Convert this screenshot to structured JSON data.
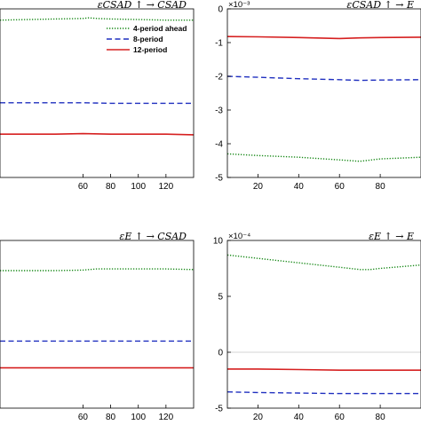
{
  "chart_data": [
    {
      "type": "line",
      "title": "εCSAD ↑ → CSAD",
      "xticks": [
        "60",
        "80",
        "100",
        "120"
      ],
      "xtick_values": [
        60,
        80,
        100,
        120
      ],
      "xlim": [
        0,
        140
      ],
      "ylim": [
        -1,
        2
      ],
      "yticks": [],
      "ylabel_exponent": "",
      "zero_line": false,
      "legend": {
        "position": "top-right",
        "entries": [
          "4-period ahead",
          "8-period",
          "12-period"
        ]
      },
      "series": [
        {
          "name": "4-period ahead",
          "color": "#1a8a1a",
          "style": "dotted",
          "x": [
            0,
            20,
            40,
            60,
            64,
            70,
            80,
            100,
            120,
            140
          ],
          "y": [
            1.8,
            1.81,
            1.82,
            1.83,
            1.84,
            1.83,
            1.82,
            1.81,
            1.8,
            1.8
          ]
        },
        {
          "name": "8-period",
          "color": "#1f2fbf",
          "style": "dashed",
          "x": [
            0,
            20,
            40,
            60,
            80,
            100,
            120,
            140
          ],
          "y": [
            0.33,
            0.33,
            0.33,
            0.33,
            0.32,
            0.32,
            0.32,
            0.32
          ]
        },
        {
          "name": "12-period",
          "color": "#d62020",
          "style": "solid",
          "x": [
            0,
            20,
            40,
            60,
            80,
            100,
            120,
            140
          ],
          "y": [
            -0.23,
            -0.23,
            -0.23,
            -0.22,
            -0.23,
            -0.23,
            -0.23,
            -0.24
          ]
        }
      ]
    },
    {
      "type": "line",
      "title": "εCSAD ↑ → E",
      "xticks": [
        "20",
        "40",
        "60",
        "80"
      ],
      "xtick_values": [
        20,
        40,
        60,
        80
      ],
      "xlim": [
        5,
        100
      ],
      "ylim": [
        -5,
        0
      ],
      "yticks": [
        "0",
        "-1",
        "-2",
        "-3",
        "-4",
        "-5"
      ],
      "ytick_values": [
        0,
        -1,
        -2,
        -3,
        -4,
        -5
      ],
      "ylabel_exponent": "×10⁻³",
      "zero_line": false,
      "legend": null,
      "series": [
        {
          "name": "",
          "color": "#d62020",
          "style": "solid",
          "x": [
            5,
            20,
            40,
            60,
            70,
            80,
            100
          ],
          "y": [
            -0.82,
            -0.83,
            -0.85,
            -0.88,
            -0.86,
            -0.85,
            -0.84
          ]
        },
        {
          "name": "",
          "color": "#1f2fbf",
          "style": "dashed",
          "x": [
            5,
            20,
            40,
            60,
            70,
            80,
            100
          ],
          "y": [
            -2.0,
            -2.03,
            -2.07,
            -2.1,
            -2.12,
            -2.11,
            -2.1
          ]
        },
        {
          "name": "",
          "color": "#1a8a1a",
          "style": "dotted",
          "x": [
            5,
            20,
            40,
            60,
            70,
            80,
            100
          ],
          "y": [
            -4.3,
            -4.35,
            -4.4,
            -4.48,
            -4.52,
            -4.45,
            -4.4
          ]
        }
      ]
    },
    {
      "type": "line",
      "title": "εE ↑ → CSAD",
      "xticks": [
        "60",
        "80",
        "100",
        "120"
      ],
      "xtick_values": [
        60,
        80,
        100,
        120
      ],
      "xlim": [
        0,
        140
      ],
      "ylim": [
        -1,
        2
      ],
      "yticks": [],
      "ylabel_exponent": "",
      "zero_line": false,
      "legend": null,
      "series": [
        {
          "name": "",
          "color": "#1a8a1a",
          "style": "dotted",
          "x": [
            0,
            20,
            40,
            60,
            70,
            80,
            100,
            120,
            140
          ],
          "y": [
            1.46,
            1.46,
            1.46,
            1.47,
            1.49,
            1.49,
            1.49,
            1.49,
            1.48
          ]
        },
        {
          "name": "",
          "color": "#1f2fbf",
          "style": "dashed",
          "x": [
            0,
            20,
            40,
            60,
            80,
            100,
            120,
            140
          ],
          "y": [
            0.2,
            0.2,
            0.2,
            0.2,
            0.2,
            0.2,
            0.2,
            0.2
          ]
        },
        {
          "name": "",
          "color": "#d62020",
          "style": "solid",
          "x": [
            0,
            20,
            40,
            60,
            80,
            100,
            120,
            140
          ],
          "y": [
            -0.28,
            -0.28,
            -0.28,
            -0.28,
            -0.28,
            -0.28,
            -0.28,
            -0.28
          ]
        }
      ]
    },
    {
      "type": "line",
      "title": "εE ↑ → E",
      "xticks": [
        "20",
        "40",
        "60",
        "80"
      ],
      "xtick_values": [
        20,
        40,
        60,
        80
      ],
      "xlim": [
        5,
        100
      ],
      "ylim": [
        -5,
        10
      ],
      "yticks": [
        "10",
        "5",
        "0",
        "-5"
      ],
      "ytick_values": [
        10,
        5,
        0,
        -5
      ],
      "ylabel_exponent": "×10⁻⁴",
      "zero_line": true,
      "legend": null,
      "series": [
        {
          "name": "",
          "color": "#1a8a1a",
          "style": "dotted",
          "x": [
            5,
            20,
            40,
            60,
            70,
            75,
            80,
            100
          ],
          "y": [
            8.7,
            8.4,
            8.0,
            7.6,
            7.4,
            7.4,
            7.5,
            7.8
          ]
        },
        {
          "name": "",
          "color": "#d62020",
          "style": "solid",
          "x": [
            5,
            20,
            40,
            60,
            80,
            100
          ],
          "y": [
            -1.5,
            -1.5,
            -1.55,
            -1.6,
            -1.6,
            -1.6
          ]
        },
        {
          "name": "",
          "color": "#1f2fbf",
          "style": "dashed",
          "x": [
            5,
            20,
            40,
            60,
            80,
            100
          ],
          "y": [
            -3.55,
            -3.6,
            -3.65,
            -3.7,
            -3.7,
            -3.7
          ]
        }
      ]
    }
  ]
}
